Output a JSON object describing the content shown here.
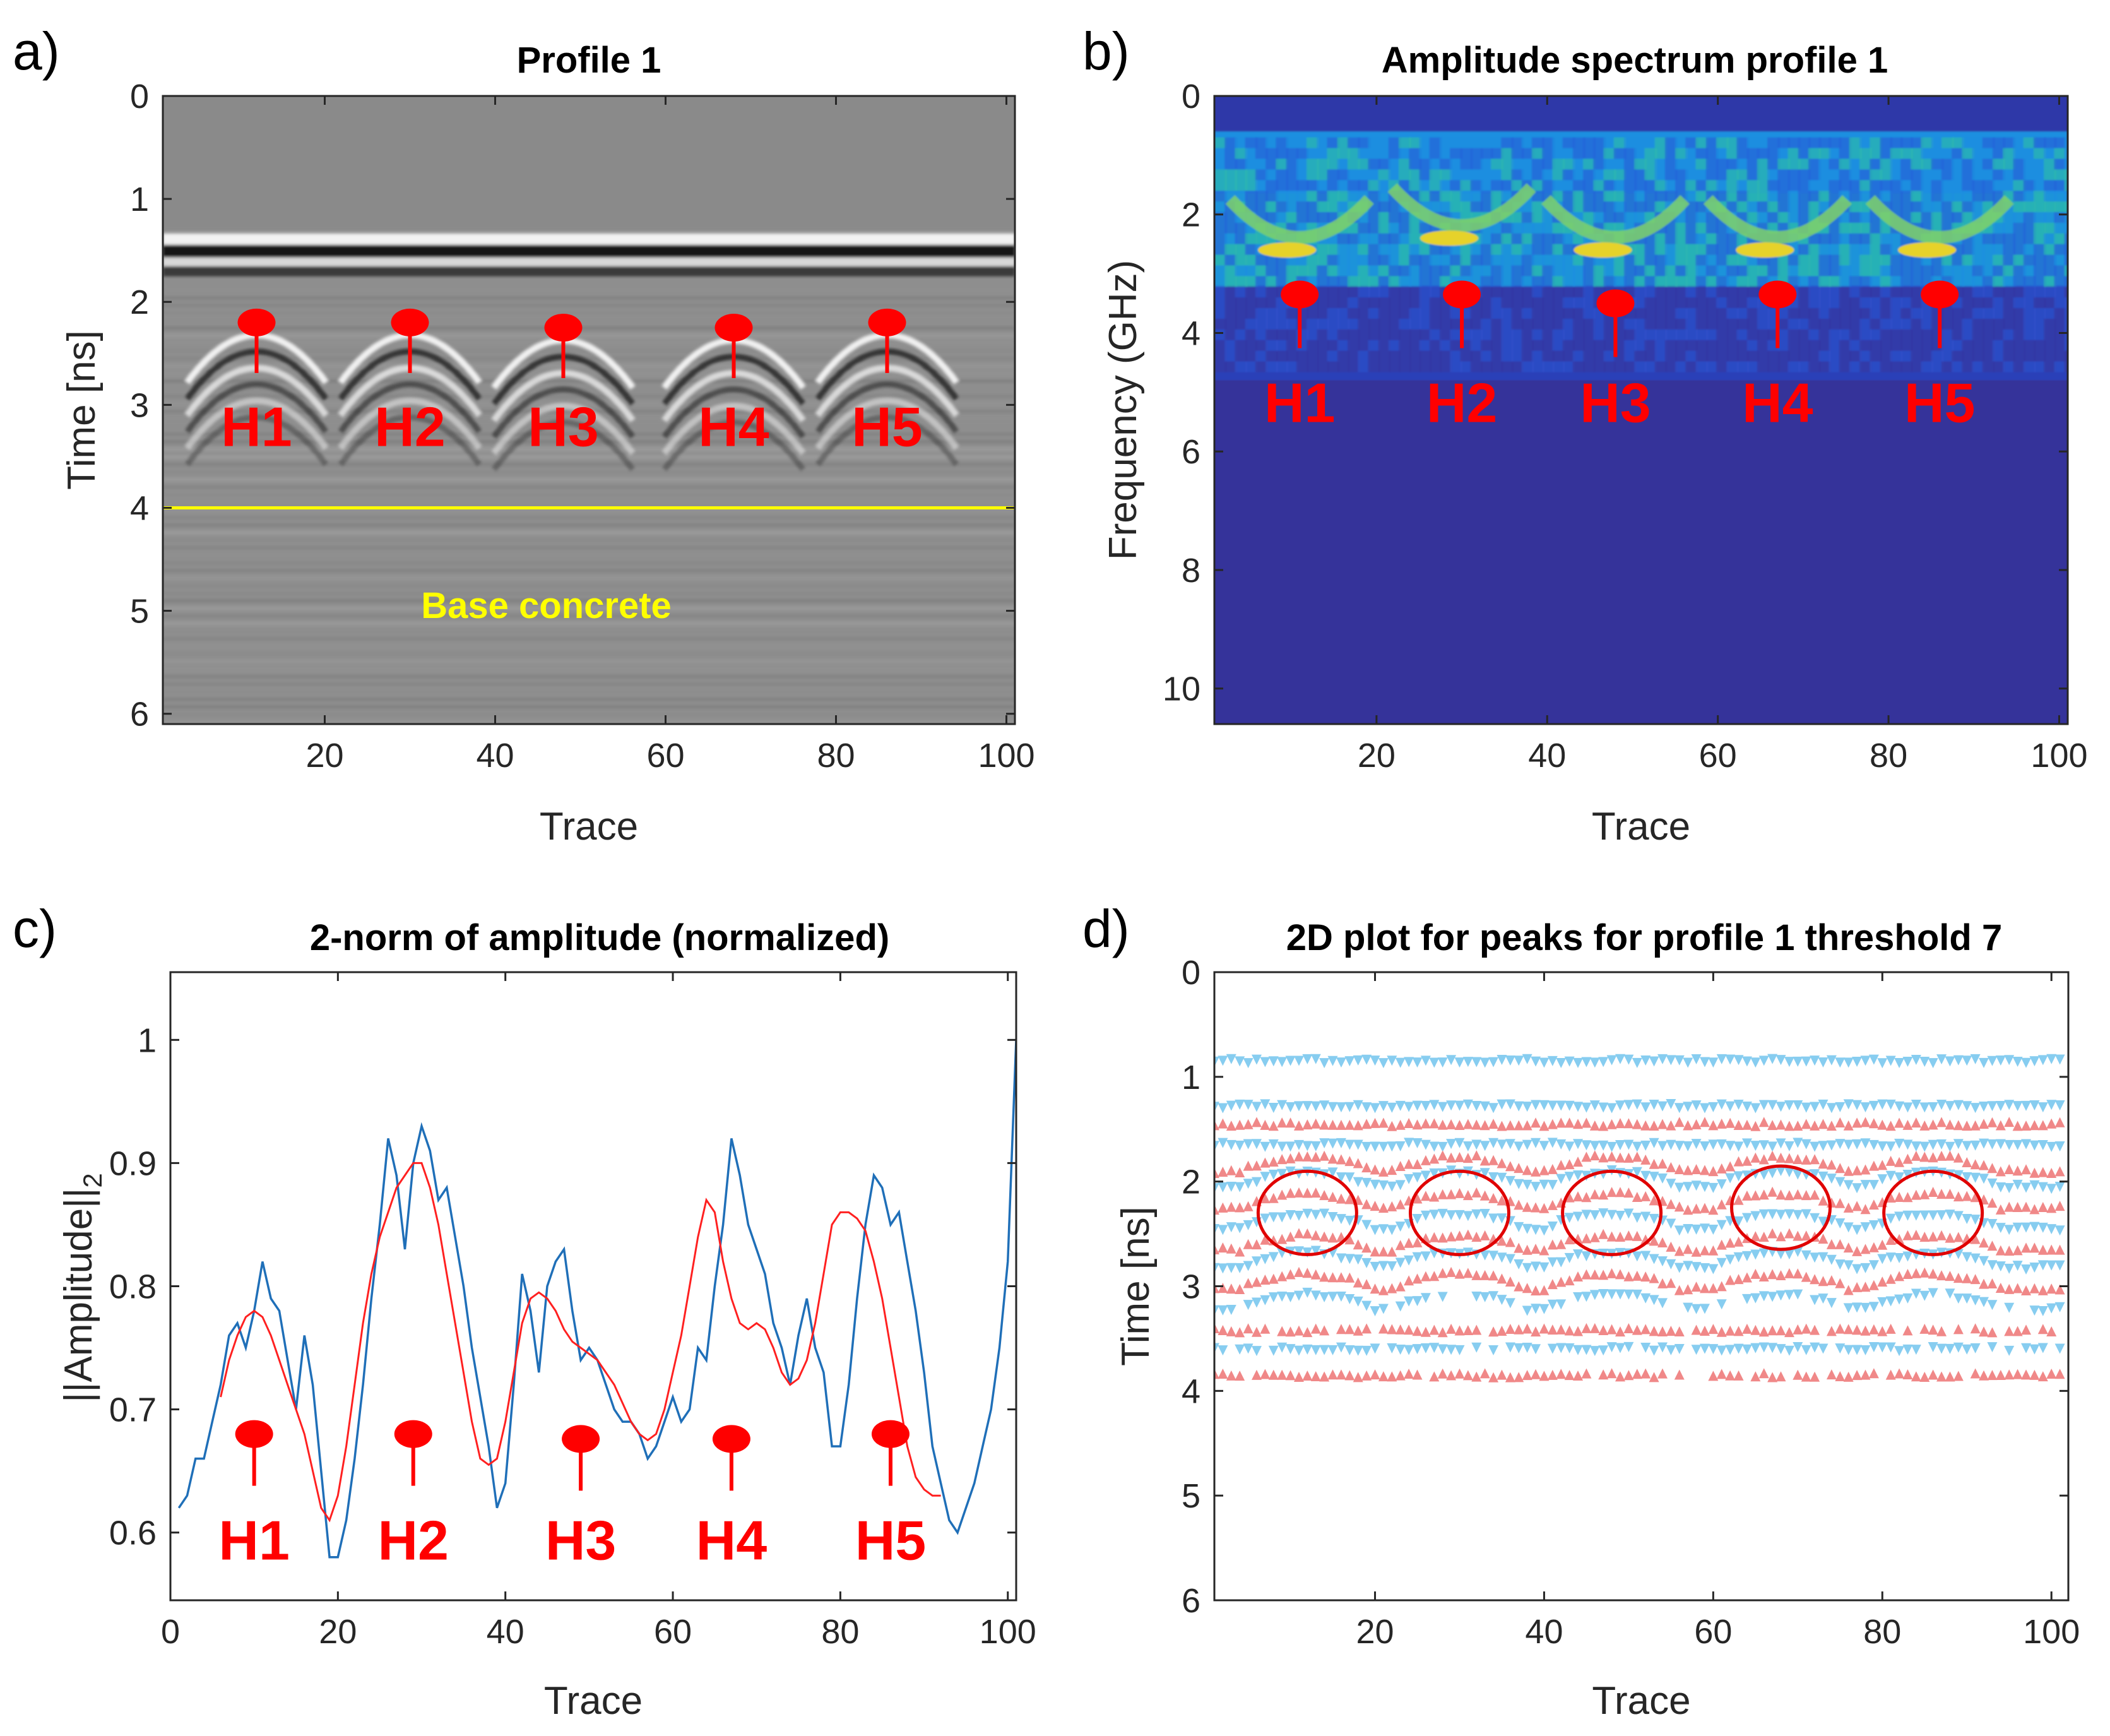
{
  "colors": {
    "marker": "#ff0000",
    "line_raw": "#1f6fb8",
    "line_smooth": "#ff2020",
    "peak_pos": "#87cdf0",
    "peak_neg": "#f08888",
    "base_line": "#ffff00",
    "spec_bg": "#35339a"
  },
  "panels": {
    "a": {
      "letter": "a)",
      "base_label": "Base concrete"
    },
    "b": {
      "letter": "b)"
    },
    "c": {
      "letter": "c)"
    },
    "d": {
      "letter": "d)"
    }
  },
  "markers": [
    "H1",
    "H2",
    "H3",
    "H4",
    "H5"
  ],
  "chart_data": [
    {
      "id": "a",
      "type": "heatmap",
      "title": "Profile 1",
      "xlabel": "Trace",
      "ylabel": "Time [ns]",
      "xlim": [
        1,
        101
      ],
      "ylim": [
        0,
        6.1
      ],
      "xticks": [
        20,
        40,
        60,
        80,
        100
      ],
      "yticks": [
        0,
        1,
        2,
        3,
        4,
        5,
        6
      ],
      "colormap": "gray",
      "surface_reflection_time": 1.55,
      "base_concrete_time": 4.0,
      "hyperbolae": [
        {
          "label": "H1",
          "trace": 12,
          "time": 2.2
        },
        {
          "label": "H2",
          "trace": 30,
          "time": 2.2
        },
        {
          "label": "H3",
          "trace": 48,
          "time": 2.25
        },
        {
          "label": "H4",
          "trace": 68,
          "time": 2.25
        },
        {
          "label": "H5",
          "trace": 86,
          "time": 2.2
        }
      ]
    },
    {
      "id": "b",
      "type": "heatmap",
      "title": "Amplitude spectrum profile 1",
      "xlabel": "Trace",
      "ylabel": "Frequency (GHz)",
      "xlim": [
        1,
        101
      ],
      "ylim": [
        0,
        10.6
      ],
      "xticks": [
        20,
        40,
        60,
        80,
        100
      ],
      "yticks": [
        0,
        2,
        4,
        6,
        8,
        10
      ],
      "colormap": "parula",
      "energy_band": [
        0.6,
        3.2
      ],
      "peak_frequency_by_hyperbola": [
        {
          "label": "H1",
          "trace": 11,
          "freq": 2.6
        },
        {
          "label": "H2",
          "trace": 30,
          "freq": 2.4
        },
        {
          "label": "H3",
          "trace": 48,
          "freq": 2.6
        },
        {
          "label": "H4",
          "trace": 67,
          "freq": 2.6
        },
        {
          "label": "H5",
          "trace": 86,
          "freq": 2.6
        }
      ]
    },
    {
      "id": "c",
      "type": "line",
      "title": "2-norm of amplitude (normalized)",
      "xlabel": "Trace",
      "ylabel_main": "||Amplitude||",
      "ylabel_sub": "2",
      "xlim": [
        0,
        101
      ],
      "ylim": [
        0.545,
        1.055
      ],
      "xticks": [
        0,
        20,
        40,
        60,
        80,
        100
      ],
      "yticks": [
        0.6,
        0.7,
        0.8,
        0.9,
        1
      ],
      "series": [
        {
          "x_start": 1,
          "values": [
            0.62,
            0.63,
            0.66,
            0.66,
            0.69,
            0.72,
            0.76,
            0.77,
            0.75,
            0.78,
            0.82,
            0.79,
            0.78,
            0.74,
            0.7,
            0.76,
            0.72,
            0.65,
            0.58,
            0.58,
            0.61,
            0.66,
            0.72,
            0.79,
            0.85,
            0.92,
            0.89,
            0.83,
            0.9,
            0.93,
            0.91,
            0.87,
            0.88,
            0.84,
            0.8,
            0.75,
            0.71,
            0.67,
            0.62,
            0.64,
            0.72,
            0.81,
            0.78,
            0.73,
            0.8,
            0.82,
            0.83,
            0.78,
            0.74,
            0.75,
            0.74,
            0.72,
            0.7,
            0.69,
            0.69,
            0.68,
            0.66,
            0.67,
            0.69,
            0.71,
            0.69,
            0.7,
            0.75,
            0.74,
            0.8,
            0.85,
            0.92,
            0.89,
            0.85,
            0.83,
            0.81,
            0.77,
            0.75,
            0.72,
            0.76,
            0.79,
            0.75,
            0.73,
            0.67,
            0.67,
            0.72,
            0.79,
            0.85,
            0.89,
            0.88,
            0.85,
            0.86,
            0.82,
            0.78,
            0.73,
            0.67,
            0.64,
            0.61,
            0.6,
            0.62,
            0.64,
            0.67,
            0.7,
            0.75,
            0.82,
            1.0
          ]
        },
        {
          "x_start": 6,
          "values": [
            0.71,
            0.74,
            0.76,
            0.775,
            0.78,
            0.775,
            0.76,
            0.74,
            0.72,
            0.7,
            0.68,
            0.65,
            0.62,
            0.61,
            0.63,
            0.67,
            0.72,
            0.77,
            0.81,
            0.84,
            0.86,
            0.88,
            0.89,
            0.9,
            0.9,
            0.88,
            0.85,
            0.81,
            0.77,
            0.73,
            0.69,
            0.66,
            0.655,
            0.66,
            0.69,
            0.73,
            0.77,
            0.79,
            0.795,
            0.79,
            0.78,
            0.765,
            0.755,
            0.75,
            0.745,
            0.74,
            0.73,
            0.72,
            0.705,
            0.69,
            0.68,
            0.675,
            0.68,
            0.7,
            0.73,
            0.76,
            0.8,
            0.84,
            0.87,
            0.86,
            0.82,
            0.79,
            0.77,
            0.765,
            0.77,
            0.765,
            0.75,
            0.73,
            0.72,
            0.725,
            0.74,
            0.77,
            0.81,
            0.85,
            0.86,
            0.86,
            0.855,
            0.845,
            0.82,
            0.79,
            0.75,
            0.71,
            0.67,
            0.645,
            0.635,
            0.63,
            0.63
          ]
        }
      ]
    },
    {
      "id": "d",
      "type": "scatter",
      "title": "2D plot for peaks for profile 1 threshold 7",
      "xlabel": "Trace",
      "ylabel": "Time [ns]",
      "xlim": [
        1,
        102
      ],
      "ylim": [
        0,
        6
      ],
      "xticks": [
        20,
        40,
        60,
        80,
        100
      ],
      "yticks": [
        0,
        1,
        2,
        3,
        4,
        5,
        6
      ],
      "positive_peak_rows": [
        0.85,
        1.28,
        1.65,
        2.05,
        2.45,
        2.82,
        3.22,
        3.6
      ],
      "negative_peak_rows": [
        1.45,
        1.9,
        2.25,
        2.65,
        3.02,
        3.42,
        3.85
      ],
      "circles": [
        {
          "trace": 12,
          "time": 2.3
        },
        {
          "trace": 30,
          "time": 2.3
        },
        {
          "trace": 48,
          "time": 2.3
        },
        {
          "trace": 68,
          "time": 2.25
        },
        {
          "trace": 86,
          "time": 2.3
        }
      ]
    }
  ]
}
